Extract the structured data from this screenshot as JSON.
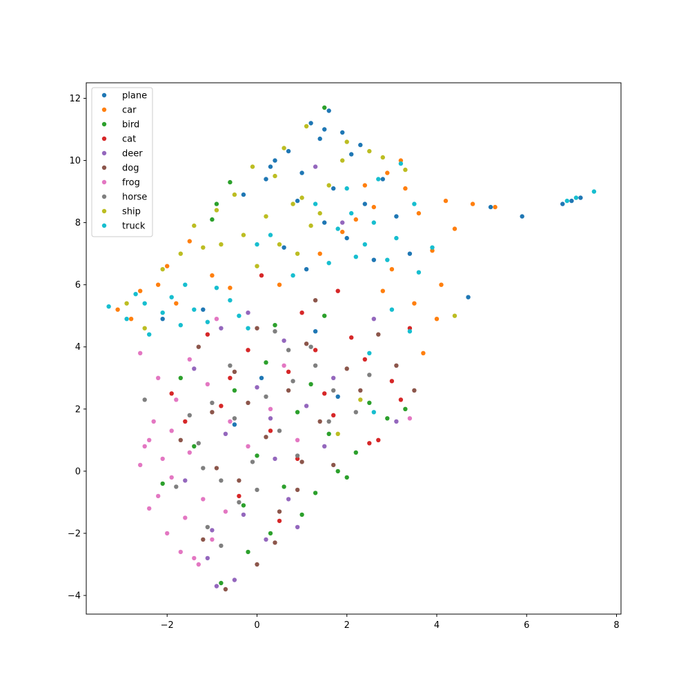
{
  "chart_data": {
    "type": "scatter",
    "title": "",
    "xlabel": "",
    "ylabel": "",
    "xlim": [
      -3.8,
      8.1
    ],
    "ylim": [
      -4.6,
      12.5
    ],
    "xticks": [
      -2,
      0,
      2,
      4,
      6,
      8
    ],
    "yticks": [
      -4,
      -2,
      0,
      2,
      4,
      6,
      8,
      10,
      12
    ],
    "xtick_labels": [
      "−2",
      "0",
      "2",
      "4",
      "6",
      "8"
    ],
    "ytick_labels": [
      "−4",
      "−2",
      "0",
      "2",
      "4",
      "6",
      "8",
      "10",
      "12"
    ],
    "grid": false,
    "legend_position": "upper-left",
    "series": [
      {
        "name": "plane",
        "color": "#1f77b4",
        "points": [
          [
            1.6,
            11.6
          ],
          [
            1.2,
            11.2
          ],
          [
            1.9,
            10.9
          ],
          [
            0.7,
            10.3
          ],
          [
            1.4,
            10.7
          ],
          [
            0.4,
            10.0
          ],
          [
            2.1,
            10.2
          ],
          [
            1.0,
            9.6
          ],
          [
            0.2,
            9.4
          ],
          [
            1.7,
            9.1
          ],
          [
            2.4,
            8.6
          ],
          [
            1.5,
            8.0
          ],
          [
            0.9,
            8.7
          ],
          [
            2.8,
            9.4
          ],
          [
            3.1,
            8.2
          ],
          [
            2.0,
            7.5
          ],
          [
            0.6,
            7.2
          ],
          [
            1.1,
            6.5
          ],
          [
            2.6,
            6.8
          ],
          [
            3.4,
            7.0
          ],
          [
            4.7,
            5.6
          ],
          [
            5.9,
            8.2
          ],
          [
            6.8,
            8.6
          ],
          [
            7.2,
            8.8
          ],
          [
            7.0,
            8.7
          ],
          [
            5.2,
            8.5
          ],
          [
            1.3,
            4.5
          ],
          [
            0.1,
            3.0
          ],
          [
            -0.5,
            1.5
          ],
          [
            1.8,
            2.4
          ],
          [
            -1.2,
            5.2
          ],
          [
            -2.1,
            4.9
          ],
          [
            -0.3,
            8.9
          ],
          [
            0.3,
            9.8
          ],
          [
            1.5,
            11.0
          ],
          [
            2.3,
            10.5
          ]
        ]
      },
      {
        "name": "car",
        "color": "#ff7f0e",
        "points": [
          [
            -3.1,
            5.2
          ],
          [
            -2.6,
            5.8
          ],
          [
            -2.2,
            6.0
          ],
          [
            -1.8,
            5.4
          ],
          [
            -2.8,
            4.9
          ],
          [
            2.9,
            9.6
          ],
          [
            3.3,
            9.1
          ],
          [
            2.6,
            8.5
          ],
          [
            3.6,
            8.3
          ],
          [
            4.2,
            8.7
          ],
          [
            4.8,
            8.6
          ],
          [
            5.3,
            8.5
          ],
          [
            4.4,
            7.8
          ],
          [
            3.9,
            7.1
          ],
          [
            2.2,
            8.1
          ],
          [
            3.0,
            6.5
          ],
          [
            4.1,
            6.0
          ],
          [
            3.5,
            5.4
          ],
          [
            2.8,
            5.8
          ],
          [
            1.9,
            7.7
          ],
          [
            1.4,
            7.0
          ],
          [
            -1.0,
            6.3
          ],
          [
            -1.5,
            7.4
          ],
          [
            -2.0,
            6.6
          ],
          [
            3.2,
            10.0
          ],
          [
            2.4,
            9.2
          ],
          [
            4.0,
            4.9
          ],
          [
            3.7,
            3.8
          ],
          [
            -0.6,
            5.9
          ],
          [
            0.5,
            6.0
          ]
        ]
      },
      {
        "name": "bird",
        "color": "#2ca02c",
        "points": [
          [
            1.5,
            11.7
          ],
          [
            -0.6,
            9.3
          ],
          [
            -0.9,
            8.6
          ],
          [
            -1.0,
            8.1
          ],
          [
            0.2,
            3.5
          ],
          [
            -0.5,
            2.6
          ],
          [
            0.9,
            1.9
          ],
          [
            1.6,
            1.2
          ],
          [
            2.2,
            0.6
          ],
          [
            0.6,
            -0.5
          ],
          [
            1.0,
            -1.4
          ],
          [
            0.3,
            -2.0
          ],
          [
            -0.2,
            -2.6
          ],
          [
            -0.8,
            -3.6
          ],
          [
            2.5,
            2.2
          ],
          [
            1.8,
            0.0
          ],
          [
            -1.4,
            0.8
          ],
          [
            -2.1,
            -0.4
          ],
          [
            0.0,
            0.5
          ],
          [
            1.2,
            2.8
          ],
          [
            2.9,
            1.7
          ],
          [
            3.3,
            2.0
          ],
          [
            -1.7,
            3.0
          ],
          [
            0.4,
            4.7
          ],
          [
            1.5,
            5.0
          ],
          [
            -0.3,
            -1.1
          ],
          [
            2.0,
            -0.2
          ],
          [
            1.3,
            -0.7
          ]
        ]
      },
      {
        "name": "cat",
        "color": "#d62728",
        "points": [
          [
            1.0,
            5.1
          ],
          [
            2.1,
            4.3
          ],
          [
            -0.2,
            3.9
          ],
          [
            0.7,
            3.2
          ],
          [
            1.5,
            2.5
          ],
          [
            -0.8,
            2.1
          ],
          [
            0.3,
            1.3
          ],
          [
            2.4,
            3.6
          ],
          [
            3.0,
            2.9
          ],
          [
            -1.6,
            1.6
          ],
          [
            0.9,
            0.4
          ],
          [
            -0.4,
            -0.8
          ],
          [
            2.7,
            1.0
          ],
          [
            3.4,
            4.6
          ],
          [
            1.8,
            5.8
          ],
          [
            0.1,
            6.3
          ],
          [
            -1.1,
            4.4
          ],
          [
            2.5,
            0.9
          ],
          [
            1.3,
            3.9
          ],
          [
            -0.6,
            3.0
          ],
          [
            0.5,
            -1.6
          ],
          [
            1.7,
            1.8
          ],
          [
            -1.9,
            2.5
          ],
          [
            3.2,
            2.3
          ]
        ]
      },
      {
        "name": "deer",
        "color": "#9467bd",
        "points": [
          [
            -0.9,
            -3.7
          ],
          [
            -0.5,
            -3.5
          ],
          [
            -1.1,
            -2.8
          ],
          [
            0.2,
            -2.2
          ],
          [
            -0.3,
            -1.4
          ],
          [
            0.7,
            -0.9
          ],
          [
            0.4,
            0.4
          ],
          [
            -0.7,
            1.2
          ],
          [
            1.1,
            2.1
          ],
          [
            0.0,
            2.7
          ],
          [
            -1.4,
            3.3
          ],
          [
            1.7,
            3.0
          ],
          [
            0.6,
            4.2
          ],
          [
            -0.2,
            5.1
          ],
          [
            1.9,
            8.0
          ],
          [
            1.3,
            9.8
          ],
          [
            2.6,
            4.9
          ],
          [
            -1.0,
            -1.9
          ],
          [
            0.9,
            -1.8
          ],
          [
            -1.6,
            -0.3
          ],
          [
            0.3,
            1.7
          ],
          [
            1.5,
            0.8
          ],
          [
            -0.8,
            4.6
          ],
          [
            3.1,
            1.6
          ]
        ]
      },
      {
        "name": "dog",
        "color": "#8c564b",
        "points": [
          [
            -0.7,
            -3.8
          ],
          [
            0.0,
            -3.0
          ],
          [
            -1.2,
            -2.2
          ],
          [
            0.5,
            -1.3
          ],
          [
            -0.4,
            -0.3
          ],
          [
            1.0,
            0.3
          ],
          [
            0.2,
            1.1
          ],
          [
            -1.0,
            1.9
          ],
          [
            1.4,
            1.6
          ],
          [
            0.7,
            2.6
          ],
          [
            -0.5,
            3.2
          ],
          [
            2.0,
            3.3
          ],
          [
            1.1,
            4.1
          ],
          [
            0.0,
            4.6
          ],
          [
            2.7,
            4.4
          ],
          [
            3.1,
            3.4
          ],
          [
            -1.7,
            1.0
          ],
          [
            1.7,
            0.2
          ],
          [
            0.9,
            -0.6
          ],
          [
            -0.2,
            2.2
          ],
          [
            2.3,
            2.6
          ],
          [
            1.3,
            5.5
          ],
          [
            -1.3,
            4.0
          ],
          [
            3.5,
            2.6
          ],
          [
            0.4,
            -2.3
          ],
          [
            -0.9,
            0.1
          ]
        ]
      },
      {
        "name": "frog",
        "color": "#e377c2",
        "points": [
          [
            -2.4,
            1.0
          ],
          [
            -2.1,
            0.4
          ],
          [
            -2.5,
            0.8
          ],
          [
            -1.9,
            -0.2
          ],
          [
            -2.2,
            -0.8
          ],
          [
            -1.6,
            -1.5
          ],
          [
            -2.0,
            -2.0
          ],
          [
            -1.7,
            -2.6
          ],
          [
            -1.3,
            -3.0
          ],
          [
            -1.0,
            -2.2
          ],
          [
            -2.3,
            1.6
          ],
          [
            -1.8,
            2.3
          ],
          [
            -2.2,
            3.0
          ],
          [
            -2.6,
            3.8
          ],
          [
            -1.5,
            3.6
          ],
          [
            -1.1,
            2.8
          ],
          [
            -0.6,
            1.6
          ],
          [
            -0.2,
            0.8
          ],
          [
            0.3,
            2.0
          ],
          [
            0.6,
            3.4
          ],
          [
            -0.9,
            4.9
          ],
          [
            -1.5,
            0.6
          ],
          [
            -1.2,
            -0.9
          ],
          [
            -2.4,
            -1.2
          ],
          [
            -1.4,
            -2.8
          ],
          [
            -0.7,
            -1.3
          ],
          [
            0.9,
            1.0
          ],
          [
            3.4,
            1.7
          ],
          [
            -2.6,
            0.2
          ],
          [
            -1.9,
            1.3
          ]
        ]
      },
      {
        "name": "horse",
        "color": "#7f7f7f",
        "points": [
          [
            -1.1,
            -1.8
          ],
          [
            -0.8,
            -0.3
          ],
          [
            -1.3,
            0.9
          ],
          [
            -0.5,
            1.7
          ],
          [
            0.2,
            2.4
          ],
          [
            0.8,
            2.9
          ],
          [
            1.3,
            3.4
          ],
          [
            1.7,
            2.6
          ],
          [
            0.5,
            1.3
          ],
          [
            -0.1,
            0.3
          ],
          [
            -1.0,
            2.2
          ],
          [
            -1.5,
            1.8
          ],
          [
            0.9,
            0.5
          ],
          [
            1.2,
            4.0
          ],
          [
            0.4,
            4.5
          ],
          [
            -0.6,
            3.4
          ],
          [
            2.2,
            1.9
          ],
          [
            -1.8,
            -0.5
          ],
          [
            -0.4,
            -1.0
          ],
          [
            1.6,
            1.6
          ],
          [
            -1.2,
            0.1
          ],
          [
            0.0,
            -0.6
          ],
          [
            -2.5,
            2.3
          ],
          [
            2.5,
            3.1
          ],
          [
            -0.8,
            -2.4
          ],
          [
            0.7,
            3.9
          ]
        ]
      },
      {
        "name": "ship",
        "color": "#bcbd22",
        "points": [
          [
            -0.1,
            9.8
          ],
          [
            0.4,
            9.5
          ],
          [
            -0.5,
            8.9
          ],
          [
            0.8,
            8.6
          ],
          [
            0.2,
            8.2
          ],
          [
            1.0,
            8.8
          ],
          [
            -0.3,
            7.6
          ],
          [
            0.5,
            7.3
          ],
          [
            1.2,
            7.9
          ],
          [
            -1.2,
            7.2
          ],
          [
            -1.7,
            7.0
          ],
          [
            -1.4,
            7.9
          ],
          [
            -0.8,
            7.3
          ],
          [
            2.0,
            10.6
          ],
          [
            2.5,
            10.3
          ],
          [
            1.1,
            11.1
          ],
          [
            0.6,
            10.4
          ],
          [
            1.6,
            9.2
          ],
          [
            2.8,
            10.1
          ],
          [
            3.3,
            9.7
          ],
          [
            0.0,
            6.6
          ],
          [
            -2.1,
            6.5
          ],
          [
            4.4,
            5.0
          ],
          [
            -2.9,
            5.4
          ],
          [
            -2.5,
            4.6
          ],
          [
            1.8,
            1.2
          ],
          [
            1.9,
            10.0
          ],
          [
            0.9,
            7.0
          ],
          [
            1.4,
            8.3
          ],
          [
            -0.9,
            8.4
          ],
          [
            2.3,
            2.3
          ]
        ]
      },
      {
        "name": "truck",
        "color": "#17becf",
        "points": [
          [
            -3.3,
            5.3
          ],
          [
            -2.9,
            4.9
          ],
          [
            -2.5,
            5.4
          ],
          [
            -2.1,
            5.1
          ],
          [
            -1.7,
            4.7
          ],
          [
            -2.4,
            4.4
          ],
          [
            -1.9,
            5.6
          ],
          [
            -1.4,
            5.2
          ],
          [
            -1.1,
            4.8
          ],
          [
            -0.6,
            5.5
          ],
          [
            -0.2,
            4.6
          ],
          [
            -2.7,
            5.7
          ],
          [
            -1.6,
            6.0
          ],
          [
            -0.9,
            5.9
          ],
          [
            -0.4,
            5.0
          ],
          [
            2.1,
            8.3
          ],
          [
            2.6,
            8.0
          ],
          [
            3.1,
            7.5
          ],
          [
            3.5,
            8.6
          ],
          [
            2.4,
            7.3
          ],
          [
            2.9,
            6.8
          ],
          [
            3.6,
            6.4
          ],
          [
            1.8,
            7.8
          ],
          [
            1.3,
            8.6
          ],
          [
            2.0,
            9.1
          ],
          [
            3.2,
            9.9
          ],
          [
            2.7,
            9.4
          ],
          [
            3.9,
            7.2
          ],
          [
            2.2,
            6.9
          ],
          [
            3.0,
            5.2
          ],
          [
            3.4,
            4.5
          ],
          [
            2.5,
            3.8
          ],
          [
            0.3,
            7.6
          ],
          [
            0.8,
            6.3
          ],
          [
            7.5,
            9.0
          ],
          [
            7.1,
            8.8
          ],
          [
            6.9,
            8.7
          ],
          [
            2.6,
            1.9
          ],
          [
            1.6,
            6.7
          ],
          [
            0.0,
            7.3
          ]
        ]
      }
    ]
  }
}
